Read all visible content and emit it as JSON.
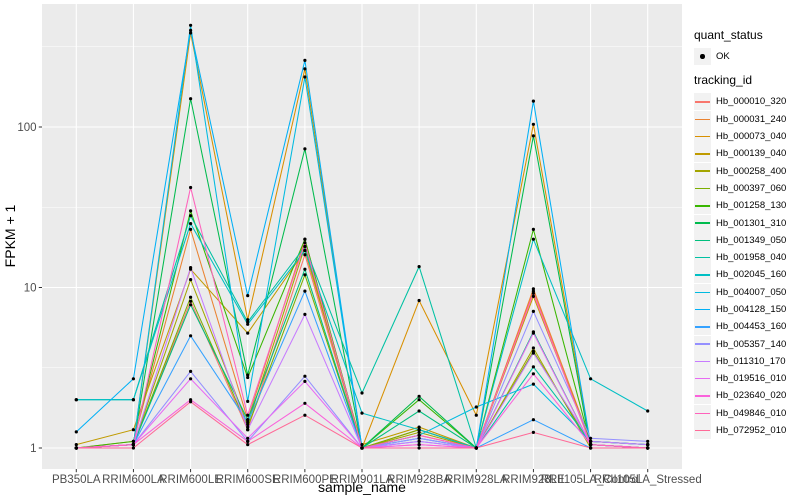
{
  "figure": {
    "background": "#FFFFFF",
    "panel_background": "#EBEBEB",
    "grid_color": "#FFFFFF",
    "tick_mark_color": "#333333",
    "axis_text_color": "#4D4D4D",
    "point_color": "#000000"
  },
  "legend": {
    "quant_status": {
      "title": "quant_status",
      "items": [
        {
          "label": "OK",
          "marker": "point",
          "color": "#000000"
        }
      ]
    },
    "tracking_id": {
      "title": "tracking_id"
    }
  },
  "chart_data": {
    "type": "line",
    "title": "",
    "xlabel": "sample_name",
    "ylabel": "FPKM + 1",
    "yscale": "log10",
    "ylim": [
      0.78,
      580
    ],
    "y_major_ticks": [
      1,
      10,
      100
    ],
    "y_tick_labels": [
      "1",
      "10",
      "100"
    ],
    "y_minor_ticks": [
      3.1623,
      31.623,
      316.23
    ],
    "grid": true,
    "legend_position": "right",
    "categories": [
      "PB350LA",
      "RRIM600LA",
      "RRIM600LE",
      "RRIM600SE",
      "RRIM600PE",
      "RRIM901LA",
      "RRIM928BA",
      "RRIM928LA",
      "RRIM928LE",
      "RRII105LA_Control",
      "RRII105LA_Stressed"
    ],
    "series": [
      {
        "name": "Hb_000010_320",
        "color": "#F8766D",
        "values": [
          1.0,
          1.05,
          8.2,
          1.3,
          16,
          1.0,
          1.2,
          1.0,
          9.5,
          1.05,
          1.0
        ]
      },
      {
        "name": "Hb_000031_240",
        "color": "#EA8331",
        "values": [
          1.0,
          1.1,
          23,
          1.5,
          20,
          1.0,
          1.3,
          1.0,
          9.8,
          1.1,
          1.05
        ]
      },
      {
        "name": "Hb_000073_040",
        "color": "#D89000",
        "values": [
          1.0,
          1.05,
          385,
          6.3,
          230,
          1.0,
          8.3,
          1.6,
          104,
          1.05,
          1.0
        ]
      },
      {
        "name": "Hb_000139_040",
        "color": "#C09B00",
        "values": [
          1.05,
          1.3,
          13,
          5.2,
          17,
          1.05,
          1.35,
          1.0,
          8.8,
          1.1,
          1.05
        ]
      },
      {
        "name": "Hb_000258_400",
        "color": "#A3A500",
        "values": [
          1.0,
          1.05,
          11.2,
          1.4,
          18,
          1.0,
          1.25,
          1.0,
          4.2,
          1.0,
          1.0
        ]
      },
      {
        "name": "Hb_000397_060",
        "color": "#7CAE00",
        "values": [
          1.0,
          1.05,
          8.7,
          1.35,
          12,
          1.0,
          1.3,
          1.0,
          4.0,
          1.05,
          1.0
        ]
      },
      {
        "name": "Hb_001258_130",
        "color": "#39B600",
        "values": [
          1.0,
          1.1,
          30,
          2.75,
          20,
          1.0,
          2.0,
          1.0,
          23,
          1.05,
          1.0
        ]
      },
      {
        "name": "Hb_001301_310",
        "color": "#00BB4E",
        "values": [
          1.0,
          1.05,
          150,
          2.85,
          73,
          1.0,
          2.1,
          1.0,
          88,
          1.0,
          1.0
        ]
      },
      {
        "name": "Hb_001349_050",
        "color": "#00BF7D",
        "values": [
          1.0,
          1.05,
          7.8,
          1.5,
          13,
          1.0,
          1.7,
          1.0,
          5.3,
          1.05,
          1.0
        ]
      },
      {
        "name": "Hb_001958_040",
        "color": "#00C1A3",
        "values": [
          2.0,
          2.0,
          28,
          6.1,
          18,
          2.2,
          13.5,
          1.0,
          3.2,
          1.1,
          1.05
        ]
      },
      {
        "name": "Hb_002045_160",
        "color": "#00BFC4",
        "values": [
          2.0,
          2.0,
          25,
          5.9,
          17,
          1.65,
          1.3,
          1.0,
          20,
          2.7,
          1.7
        ]
      },
      {
        "name": "Hb_004007_050",
        "color": "#00BAE0",
        "values": [
          1.0,
          1.05,
          430,
          1.95,
          205,
          1.0,
          1.2,
          1.8,
          2.5,
          1.1,
          1.05
        ]
      },
      {
        "name": "Hb_004128_150",
        "color": "#00B0F6",
        "values": [
          1.26,
          2.7,
          400,
          8.9,
          260,
          1.0,
          1.15,
          1.0,
          145,
          1.05,
          1.0
        ]
      },
      {
        "name": "Hb_004453_160",
        "color": "#35A2FF",
        "values": [
          1.0,
          1.05,
          5.0,
          1.45,
          9.5,
          1.0,
          1.1,
          1.0,
          1.5,
          1.0,
          1.0
        ]
      },
      {
        "name": "Hb_005357_140",
        "color": "#9590FF",
        "values": [
          1.0,
          1.05,
          3.0,
          1.1,
          2.8,
          1.0,
          1.15,
          1.0,
          7.1,
          1.15,
          1.1
        ]
      },
      {
        "name": "Hb_011310_170",
        "color": "#C77CFF",
        "values": [
          1.0,
          1.05,
          13.3,
          1.3,
          6.8,
          1.0,
          1.1,
          1.0,
          3.9,
          1.1,
          1.05
        ]
      },
      {
        "name": "Hb_019516_010",
        "color": "#E76BF3",
        "values": [
          1.0,
          1.05,
          2.7,
          1.15,
          2.6,
          1.0,
          1.05,
          1.0,
          5.2,
          1.05,
          1.0
        ]
      },
      {
        "name": "Hb_023640_020",
        "color": "#FA62DB",
        "values": [
          1.0,
          1.05,
          2.0,
          1.1,
          1.9,
          1.0,
          1.05,
          1.0,
          2.9,
          1.05,
          1.0
        ]
      },
      {
        "name": "Hb_049846_010",
        "color": "#FF62BC",
        "values": [
          1.0,
          1.05,
          42,
          1.6,
          19,
          1.0,
          1.2,
          1.0,
          9.2,
          1.05,
          1.0
        ]
      },
      {
        "name": "Hb_072952_010",
        "color": "#FF6A98",
        "values": [
          1.0,
          1.0,
          1.94,
          1.05,
          1.6,
          1.0,
          1.0,
          1.0,
          1.25,
          1.0,
          1.0
        ]
      }
    ]
  }
}
